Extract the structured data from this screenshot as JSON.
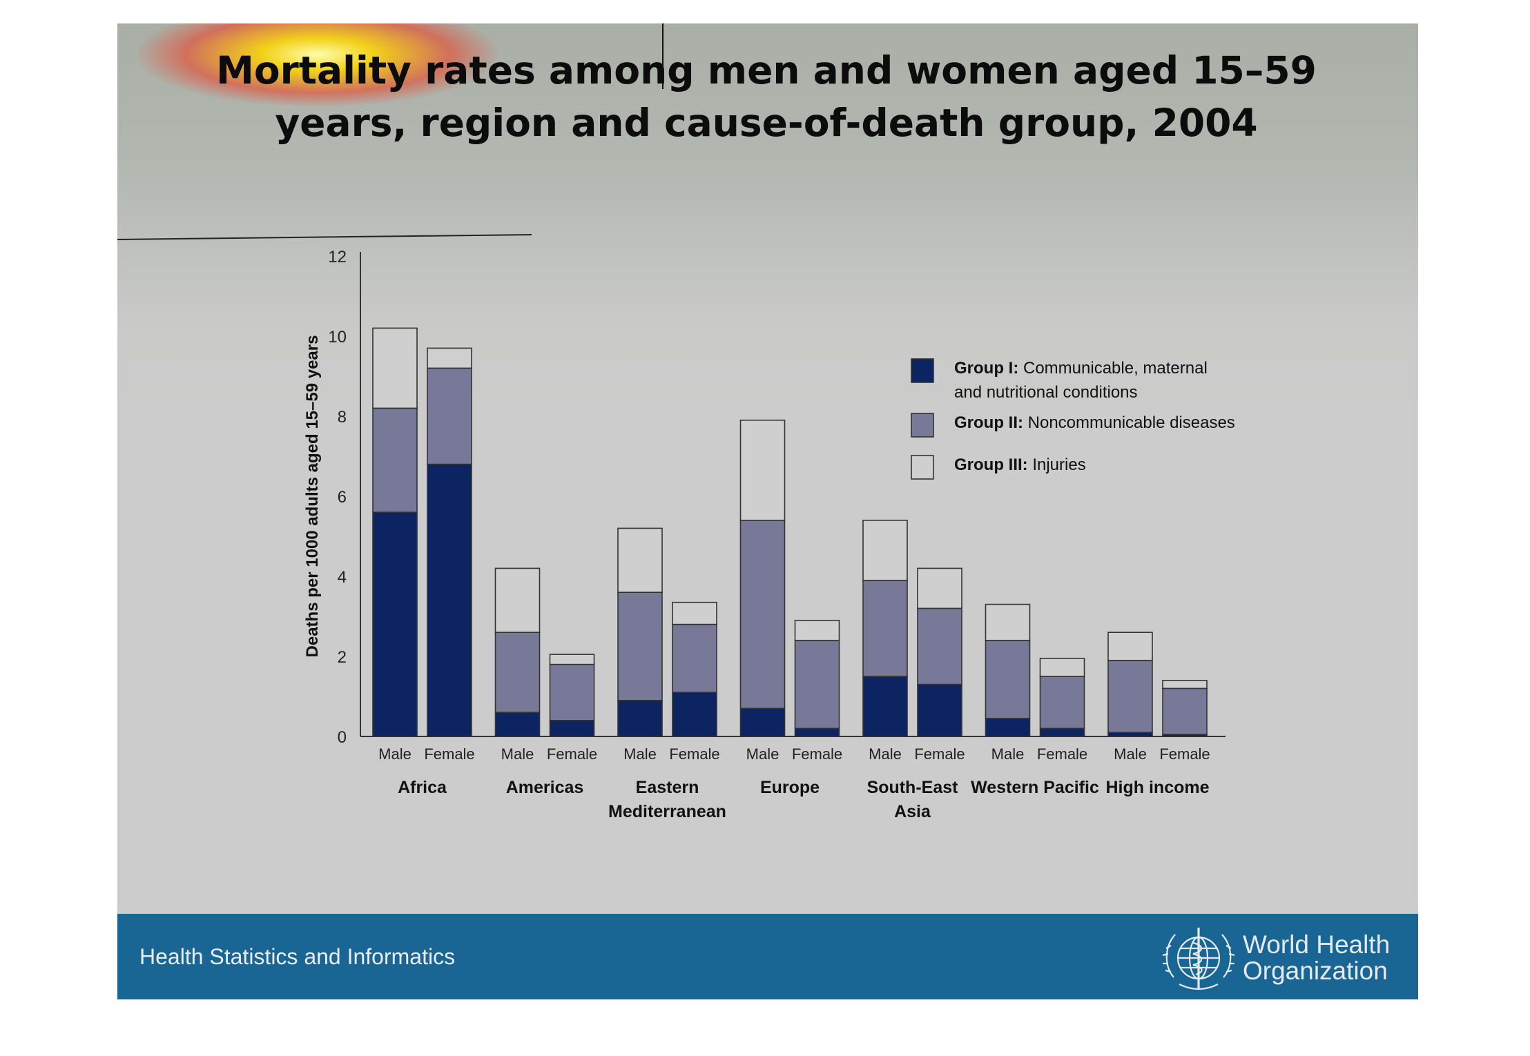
{
  "slide": {
    "title": "Mortality rates among men and women aged 15–59 years, region and cause-of-death group, 2004",
    "footer_text": "Health Statistics and Informatics",
    "logo_text": [
      "World Health",
      "Organization"
    ],
    "icons": [
      "who-emblem-icon"
    ]
  },
  "chart_data": {
    "type": "bar",
    "stacked": true,
    "title": "Mortality rates among men and women aged 15–59 years, region and cause-of-death group, 2004",
    "ylabel": "Deaths per 1000 adults aged 15–59 years",
    "xlabel": "",
    "ylim": [
      0,
      12
    ],
    "yticks": [
      0,
      2,
      4,
      6,
      8,
      10,
      12
    ],
    "grid": false,
    "legend_position": "top-right",
    "groups": [
      "Africa",
      "Americas",
      "Eastern Mediterranean",
      "Europe",
      "South-East Asia",
      "Western Pacific",
      "High income"
    ],
    "sexes": [
      "Male",
      "Female"
    ],
    "categories": [
      "Africa Male",
      "Africa Female",
      "Americas Male",
      "Americas Female",
      "Eastern Mediterranean Male",
      "Eastern Mediterranean Female",
      "Europe Male",
      "Europe Female",
      "South-East Asia Male",
      "South-East Asia Female",
      "Western Pacific Male",
      "Western Pacific Female",
      "High income Male",
      "High income Female"
    ],
    "series": [
      {
        "name": "Group I: Communicable, maternal and nutritional conditions",
        "legend_bold": "Group I:",
        "legend_rest": "Communicable, maternal and nutritional conditions",
        "color": "#0c2462",
        "values": [
          5.6,
          6.8,
          0.6,
          0.4,
          0.9,
          1.1,
          0.7,
          0.2,
          1.5,
          1.3,
          0.45,
          0.2,
          0.1,
          0.05
        ]
      },
      {
        "name": "Group II: Noncommunicable diseases",
        "legend_bold": "Group II:",
        "legend_rest": "Noncommunicable diseases",
        "color": "#787898",
        "values": [
          2.6,
          2.4,
          2.0,
          1.4,
          2.7,
          1.7,
          4.7,
          2.2,
          2.4,
          1.9,
          1.95,
          1.3,
          1.8,
          1.15
        ]
      },
      {
        "name": "Group III: Injuries",
        "legend_bold": "Group III:",
        "legend_rest": "Injuries",
        "color": "#cfcfcf",
        "values": [
          2.0,
          0.5,
          1.6,
          0.25,
          1.6,
          0.55,
          2.5,
          0.5,
          1.5,
          1.0,
          0.9,
          0.45,
          0.7,
          0.2
        ]
      }
    ]
  }
}
